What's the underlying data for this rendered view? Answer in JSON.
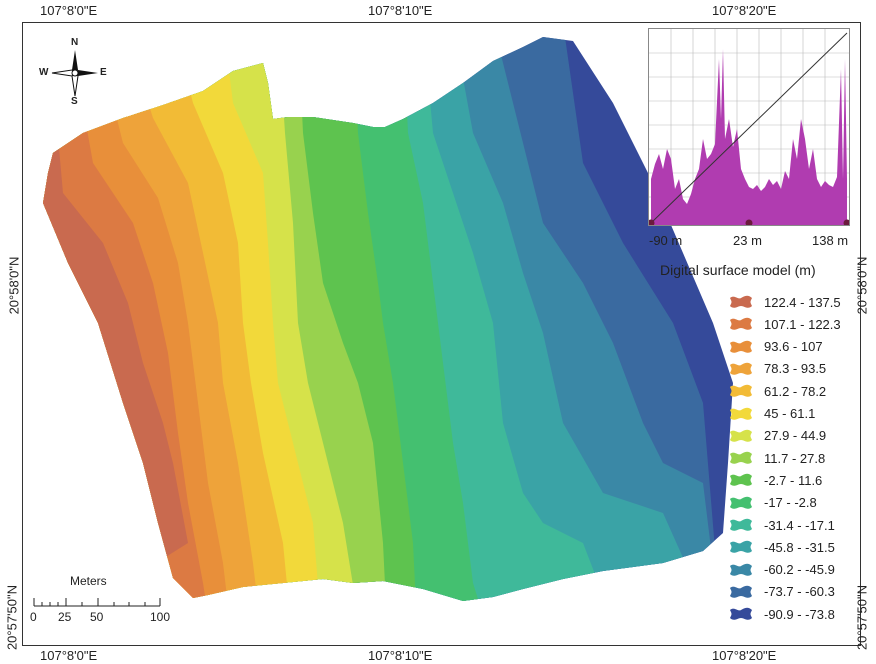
{
  "map": {
    "top_ticks": [
      "107°8'0\"E",
      "107°8'10\"E",
      "107°8'20\"E"
    ],
    "bottom_ticks": [
      "107°8'0\"E",
      "107°8'10\"E",
      "107°8'20\"E"
    ],
    "left_ticks": [
      "20°58'0\"N",
      "20°57'50\"N"
    ],
    "right_ticks": [
      "20°58'0\"N",
      "20°57'50\"N"
    ]
  },
  "north_arrow": {
    "n": "N",
    "s": "S",
    "e": "E",
    "w": "W"
  },
  "histogram": {
    "min_label": "-90 m",
    "mid_label": "23 m",
    "max_label": "138 m",
    "color": "#b03cb0"
  },
  "legend": {
    "title": "Digital surface model (m)",
    "items": [
      {
        "label": "122.4 - 137.5",
        "color": "#c96a4f"
      },
      {
        "label": "107.1 - 122.3",
        "color": "#dc7a43"
      },
      {
        "label": "93.6 - 107",
        "color": "#e88f3a"
      },
      {
        "label": "78.3 - 93.5",
        "color": "#eea33a"
      },
      {
        "label": "61.2 - 78.2",
        "color": "#f2bb36"
      },
      {
        "label": "45 - 61.1",
        "color": "#f2d93a"
      },
      {
        "label": "27.9 - 44.9",
        "color": "#d6e24a"
      },
      {
        "label": "11.7 - 27.8",
        "color": "#98d24e"
      },
      {
        "label": "-2.7 - 11.6",
        "color": "#5ec34f"
      },
      {
        "label": "-17 - -2.8",
        "color": "#44c070"
      },
      {
        "label": "-31.4 - -17.1",
        "color": "#3fb99a"
      },
      {
        "label": "-45.8 - -31.5",
        "color": "#3aa3a6"
      },
      {
        "label": "-60.2 - -45.9",
        "color": "#3a88a6"
      },
      {
        "label": "-73.7 - -60.3",
        "color": "#3a6aa0"
      },
      {
        "label": "-90.9 - -73.8",
        "color": "#354a9a"
      }
    ]
  },
  "scale_bar": {
    "title": "Meters",
    "ticks": [
      "0",
      "25",
      "50",
      "100"
    ]
  }
}
